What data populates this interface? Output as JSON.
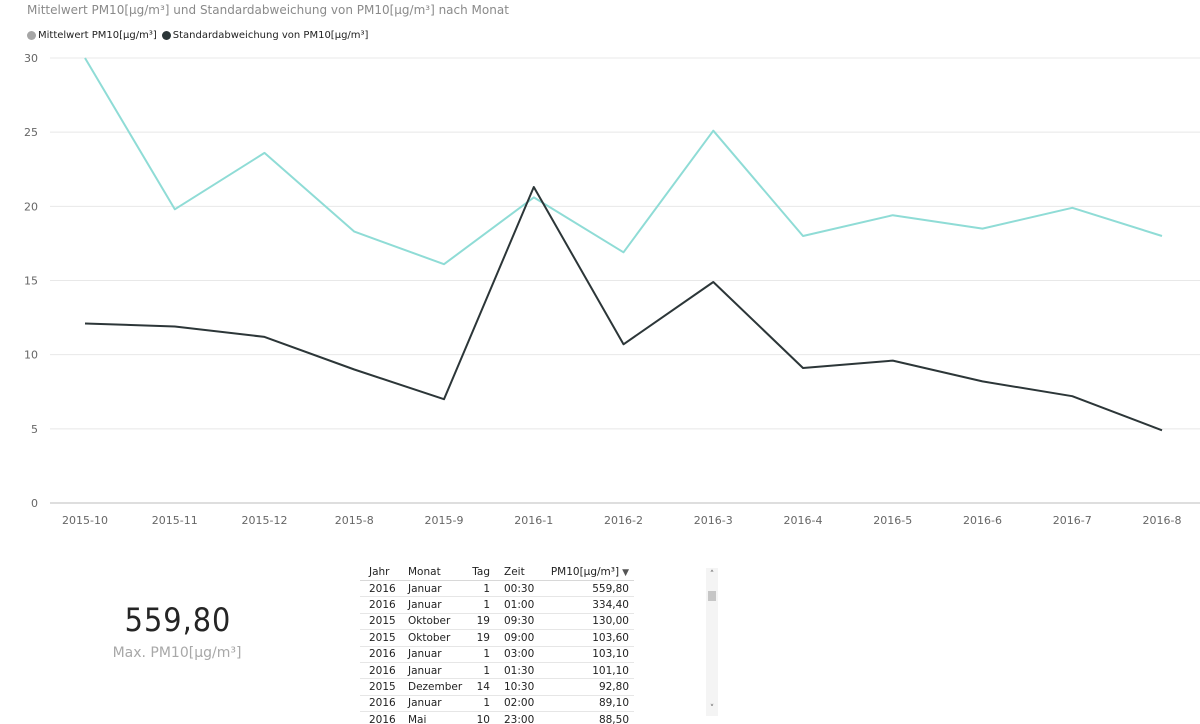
{
  "chart_data": {
    "type": "line",
    "title": "Mittelwert PM10[μg/m³] und Standardabweichung von PM10[μg/m³] nach Monat",
    "categories": [
      "2015-10",
      "2015-11",
      "2015-12",
      "2015-8",
      "2015-9",
      "2016-1",
      "2016-2",
      "2016-3",
      "2016-4",
      "2016-5",
      "2016-6",
      "2016-7",
      "2016-8"
    ],
    "series": [
      {
        "name": "Mittelwert PM10[μg/m³]",
        "legend_color": "#a6a6a6",
        "line_color": "#8fdcd6",
        "values": [
          30.0,
          19.8,
          23.6,
          18.3,
          16.1,
          20.6,
          16.9,
          25.1,
          18.0,
          19.4,
          18.5,
          19.9,
          18.0
        ]
      },
      {
        "name": "Standardabweichung von PM10[μg/m³]",
        "legend_color": "#2c3638",
        "line_color": "#2c3638",
        "values": [
          12.1,
          11.9,
          11.2,
          9.0,
          7.0,
          21.3,
          10.7,
          14.9,
          9.1,
          9.6,
          8.2,
          7.2,
          4.9
        ]
      }
    ],
    "yticks": [
      0,
      5,
      10,
      15,
      20,
      25,
      30
    ],
    "ylim": [
      0,
      30
    ],
    "xlabel": "",
    "ylabel": "",
    "grid": true,
    "legend_position": "top-left"
  },
  "kpi": {
    "value": "559,80",
    "label": "Max. PM10[μg/m³]"
  },
  "table": {
    "headers": {
      "year": "Jahr",
      "month": "Monat",
      "day": "Tag",
      "time": "Zeit",
      "pm10": "PM10[μg/m³]"
    },
    "rows": [
      [
        "2016",
        "Januar",
        "1",
        "00:30",
        "559,80"
      ],
      [
        "2016",
        "Januar",
        "1",
        "01:00",
        "334,40"
      ],
      [
        "2015",
        "Oktober",
        "19",
        "09:30",
        "130,00"
      ],
      [
        "2015",
        "Oktober",
        "19",
        "09:00",
        "103,60"
      ],
      [
        "2016",
        "Januar",
        "1",
        "03:00",
        "103,10"
      ],
      [
        "2016",
        "Januar",
        "1",
        "01:30",
        "101,10"
      ],
      [
        "2015",
        "Dezember",
        "14",
        "10:30",
        "92,80"
      ],
      [
        "2016",
        "Januar",
        "1",
        "02:00",
        "89,10"
      ],
      [
        "2016",
        "Mai",
        "10",
        "23:00",
        "88,50"
      ]
    ]
  },
  "icons": {
    "sort": "sort-descending-icon",
    "scroll_up": "chevron-up-icon",
    "scroll_down": "chevron-down-icon"
  }
}
